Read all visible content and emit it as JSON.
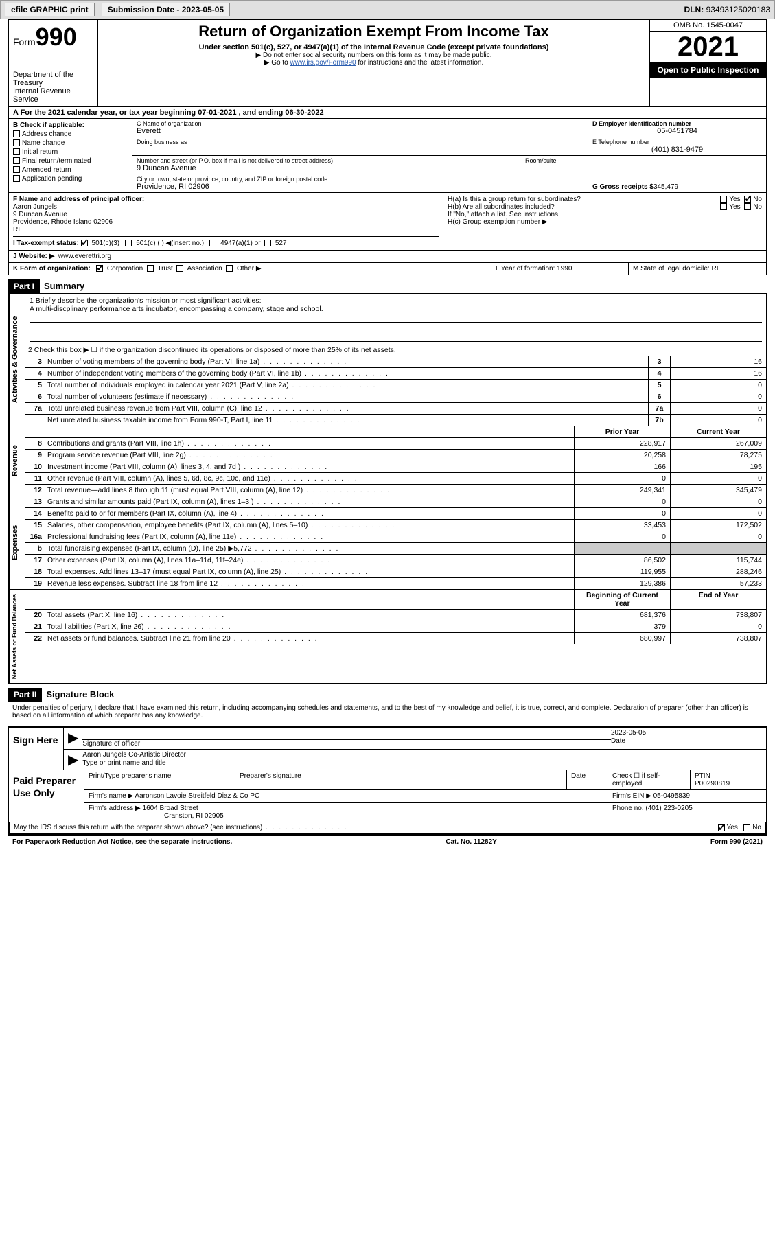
{
  "topbar": {
    "efile": "efile GRAPHIC print",
    "submission": "Submission Date - 2023-05-05",
    "dln_label": "DLN:",
    "dln": "93493125020183"
  },
  "header": {
    "form_word": "Form",
    "form_num": "990",
    "dept": "Department of the Treasury",
    "irs": "Internal Revenue Service",
    "title": "Return of Organization Exempt From Income Tax",
    "sub": "Under section 501(c), 527, or 4947(a)(1) of the Internal Revenue Code (except private foundations)",
    "note1": "▶ Do not enter social security numbers on this form as it may be made public.",
    "note2_pre": "▶ Go to ",
    "note2_link": "www.irs.gov/Form990",
    "note2_post": " for instructions and the latest information.",
    "omb": "OMB No. 1545-0047",
    "year": "2021",
    "open": "Open to Public Inspection"
  },
  "row_a": "A For the 2021 calendar year, or tax year beginning 07-01-2021   , and ending 06-30-2022",
  "col_b": {
    "title": "B Check if applicable:",
    "items": [
      "Address change",
      "Name change",
      "Initial return",
      "Final return/terminated",
      "Amended return",
      "Application pending"
    ]
  },
  "col_c": {
    "name_label": "C Name of organization",
    "name": "Everett",
    "dba_label": "Doing business as",
    "addr_label": "Number and street (or P.O. box if mail is not delivered to street address)",
    "room_label": "Room/suite",
    "addr": "9 Duncan Avenue",
    "city_label": "City or town, state or province, country, and ZIP or foreign postal code",
    "city": "Providence, RI  02906"
  },
  "col_d": {
    "ein_label": "D Employer identification number",
    "ein": "05-0451784",
    "tel_label": "E Telephone number",
    "tel": "(401) 831-9479",
    "gross_label": "G Gross receipts $",
    "gross": "345,479"
  },
  "officer": {
    "label": "F  Name and address of principal officer:",
    "name": "Aaron Jungels",
    "addr1": "9 Duncan Avenue",
    "addr2": "Providence, Rhode Island  02906",
    "addr3": "RI"
  },
  "h": {
    "a": "H(a)  Is this a group return for subordinates?",
    "b": "H(b)  Are all subordinates included?",
    "note": "If \"No,\" attach a list. See instructions.",
    "c": "H(c)  Group exemption number ▶",
    "yes": "Yes",
    "no": "No"
  },
  "row_i": {
    "label": "I   Tax-exempt status:",
    "o1": "501(c)(3)",
    "o2": "501(c) (  ) ◀(insert no.)",
    "o3": "4947(a)(1) or",
    "o4": "527"
  },
  "row_j": {
    "label": "J   Website: ▶",
    "val": "www.everettri.org"
  },
  "row_k": {
    "label": "K Form of organization:",
    "o1": "Corporation",
    "o2": "Trust",
    "o3": "Association",
    "o4": "Other ▶",
    "l": "L Year of formation: 1990",
    "m": "M State of legal domicile: RI"
  },
  "part1": {
    "hdr": "Part I",
    "title": "Summary"
  },
  "mission": {
    "q": "1   Briefly describe the organization's mission or most significant activities:",
    "text": "A multi-discplinary performance arts incubator, encompassing a company, stage and school."
  },
  "line2": "2   Check this box ▶ ☐  if the organization discontinued its operations or disposed of more than 25% of its net assets.",
  "gov_rows": [
    {
      "n": "3",
      "d": "Number of voting members of the governing body (Part VI, line 1a)",
      "b": "3",
      "v": "16"
    },
    {
      "n": "4",
      "d": "Number of independent voting members of the governing body (Part VI, line 1b)",
      "b": "4",
      "v": "16"
    },
    {
      "n": "5",
      "d": "Total number of individuals employed in calendar year 2021 (Part V, line 2a)",
      "b": "5",
      "v": "0"
    },
    {
      "n": "6",
      "d": "Total number of volunteers (estimate if necessary)",
      "b": "6",
      "v": "0"
    },
    {
      "n": "7a",
      "d": "Total unrelated business revenue from Part VIII, column (C), line 12",
      "b": "7a",
      "v": "0"
    },
    {
      "n": "",
      "d": "Net unrelated business taxable income from Form 990-T, Part I, line 11",
      "b": "7b",
      "v": "0"
    }
  ],
  "pycy": {
    "prior": "Prior Year",
    "current": "Current Year"
  },
  "rev_rows": [
    {
      "n": "8",
      "d": "Contributions and grants (Part VIII, line 1h)",
      "p": "228,917",
      "c": "267,009"
    },
    {
      "n": "9",
      "d": "Program service revenue (Part VIII, line 2g)",
      "p": "20,258",
      "c": "78,275"
    },
    {
      "n": "10",
      "d": "Investment income (Part VIII, column (A), lines 3, 4, and 7d )",
      "p": "166",
      "c": "195"
    },
    {
      "n": "11",
      "d": "Other revenue (Part VIII, column (A), lines 5, 6d, 8c, 9c, 10c, and 11e)",
      "p": "0",
      "c": "0"
    },
    {
      "n": "12",
      "d": "Total revenue—add lines 8 through 11 (must equal Part VIII, column (A), line 12)",
      "p": "249,341",
      "c": "345,479"
    }
  ],
  "exp_rows": [
    {
      "n": "13",
      "d": "Grants and similar amounts paid (Part IX, column (A), lines 1–3 )",
      "p": "0",
      "c": "0"
    },
    {
      "n": "14",
      "d": "Benefits paid to or for members (Part IX, column (A), line 4)",
      "p": "0",
      "c": "0"
    },
    {
      "n": "15",
      "d": "Salaries, other compensation, employee benefits (Part IX, column (A), lines 5–10)",
      "p": "33,453",
      "c": "172,502"
    },
    {
      "n": "16a",
      "d": "Professional fundraising fees (Part IX, column (A), line 11e)",
      "p": "0",
      "c": "0"
    },
    {
      "n": "b",
      "d": "Total fundraising expenses (Part IX, column (D), line 25) ▶5,772",
      "p": "",
      "c": "",
      "shaded": true
    },
    {
      "n": "17",
      "d": "Other expenses (Part IX, column (A), lines 11a–11d, 11f–24e)",
      "p": "86,502",
      "c": "115,744"
    },
    {
      "n": "18",
      "d": "Total expenses. Add lines 13–17 (must equal Part IX, column (A), line 25)",
      "p": "119,955",
      "c": "288,246"
    },
    {
      "n": "19",
      "d": "Revenue less expenses. Subtract line 18 from line 12",
      "p": "129,386",
      "c": "57,233"
    }
  ],
  "na_hdr": {
    "begin": "Beginning of Current Year",
    "end": "End of Year"
  },
  "na_rows": [
    {
      "n": "20",
      "d": "Total assets (Part X, line 16)",
      "p": "681,376",
      "c": "738,807"
    },
    {
      "n": "21",
      "d": "Total liabilities (Part X, line 26)",
      "p": "379",
      "c": "0"
    },
    {
      "n": "22",
      "d": "Net assets or fund balances. Subtract line 21 from line 20",
      "p": "680,997",
      "c": "738,807"
    }
  ],
  "vtabs": {
    "gov": "Activities & Governance",
    "rev": "Revenue",
    "exp": "Expenses",
    "na": "Net Assets or Fund Balances"
  },
  "part2": {
    "hdr": "Part II",
    "title": "Signature Block"
  },
  "sig": {
    "decl": "Under penalties of perjury, I declare that I have examined this return, including accompanying schedules and statements, and to the best of my knowledge and belief, it is true, correct, and complete. Declaration of preparer (other than officer) is based on all information of which preparer has any knowledge.",
    "sign_here": "Sign Here",
    "sig_label": "Signature of officer",
    "date": "2023-05-05",
    "date_label": "Date",
    "name": "Aaron Jungels Co-Artistic Director",
    "name_label": "Type or print name and title"
  },
  "prep": {
    "title": "Paid Preparer Use Only",
    "h1": "Print/Type preparer's name",
    "h2": "Preparer's signature",
    "h3": "Date",
    "h4_pre": "Check ☐ if self-employed",
    "h5": "PTIN",
    "ptin": "P00290819",
    "firm_label": "Firm's name     ▶",
    "firm": "Aaronson Lavoie Streitfeld Diaz & Co PC",
    "ein_label": "Firm's EIN ▶",
    "ein": "05-0495839",
    "addr_label": "Firm's address ▶",
    "addr1": "1604 Broad Street",
    "addr2": "Cranston, RI  02905",
    "phone_label": "Phone no.",
    "phone": "(401) 223-0205"
  },
  "discuss": {
    "q": "May the IRS discuss this return with the preparer shown above? (see instructions)",
    "yes": "Yes",
    "no": "No"
  },
  "footer": {
    "left": "For Paperwork Reduction Act Notice, see the separate instructions.",
    "mid": "Cat. No. 11282Y",
    "right": "Form 990 (2021)"
  }
}
